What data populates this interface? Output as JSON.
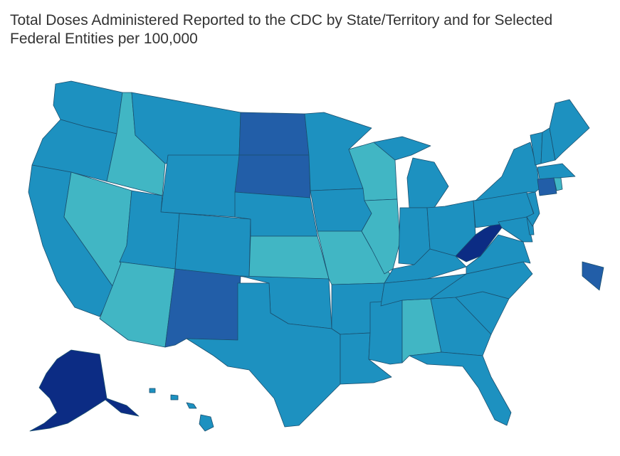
{
  "title_line1": "Total Doses Administered Reported to the CDC by State/Territory and for Selected",
  "title_line2": "Federal Entities per 100,000",
  "colors": {
    "light": "#41b6c4",
    "mid": "#1d91c0",
    "dark": "#225ea8",
    "darkest": "#0c2c84"
  }
}
